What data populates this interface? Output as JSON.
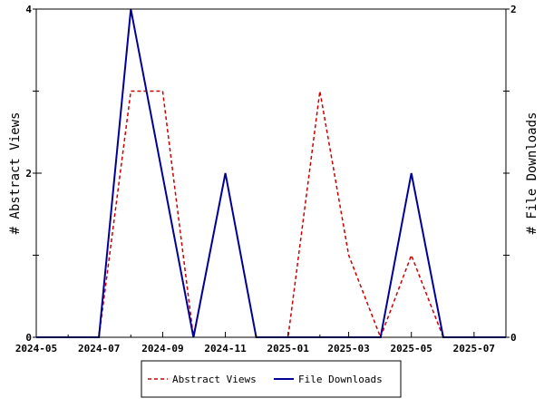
{
  "chart_data": {
    "type": "line",
    "x": [
      "2024-05",
      "2024-06",
      "2024-07",
      "2024-08",
      "2024-09",
      "2024-10",
      "2024-11",
      "2024-12",
      "2025-01",
      "2025-02",
      "2025-03",
      "2025-04",
      "2025-05",
      "2025-06",
      "2025-07",
      "2025-08"
    ],
    "x_tick_labels": [
      "2024-05",
      "2024-07",
      "2024-09",
      "2024-11",
      "2025-01",
      "2025-03",
      "2025-05",
      "2025-07"
    ],
    "series": [
      {
        "name": "Abstract Views",
        "axis": "left",
        "color": "#cc0000",
        "style": "dashed",
        "points": [
          [
            "2024-05-01",
            0
          ],
          [
            "2024-06-01",
            0
          ],
          [
            "2024-07-01",
            0
          ],
          [
            "2024-08-01",
            3
          ],
          [
            "2024-09-01",
            3
          ],
          [
            "2024-10-01",
            0
          ],
          [
            "2024-11-01",
            2
          ],
          [
            "2024-12-01",
            0
          ],
          [
            "2025-01-01",
            0
          ],
          [
            "2025-02-01",
            3
          ],
          [
            "2025-03-01",
            1
          ],
          [
            "2025-04-01",
            0
          ],
          [
            "2025-05-01",
            1
          ],
          [
            "2025-06-01",
            0
          ],
          [
            "2025-07-01",
            0
          ],
          [
            "2025-08-01",
            0
          ]
        ]
      },
      {
        "name": "File Downloads",
        "axis": "right",
        "color": "#000099",
        "style": "solid",
        "points": [
          [
            "2024-05-01",
            0
          ],
          [
            "2024-06-01",
            0
          ],
          [
            "2024-07-01",
            0
          ],
          [
            "2024-08-01",
            2
          ],
          [
            "2024-10-01",
            0
          ],
          [
            "2024-11-01",
            1
          ],
          [
            "2024-12-01",
            0
          ],
          [
            "2025-01-01",
            0
          ],
          [
            "2025-02-01",
            0
          ],
          [
            "2025-03-01",
            0
          ],
          [
            "2025-04-01",
            0
          ],
          [
            "2025-05-01",
            1
          ],
          [
            "2025-06-01",
            0
          ],
          [
            "2025-07-01",
            0
          ],
          [
            "2025-08-01",
            0
          ]
        ]
      }
    ],
    "y_left": {
      "label": "# Abstract Views",
      "ticks": [
        0,
        2,
        4
      ],
      "range": [
        0,
        4
      ]
    },
    "y_right": {
      "label": "# File Downloads",
      "ticks": [
        0,
        2
      ],
      "range": [
        0,
        2
      ]
    },
    "x_range": [
      "2024-05-01",
      "2025-08-01"
    ],
    "grid": false,
    "legend": {
      "placement": "bottom-center",
      "entries": [
        "Abstract Views",
        "File Downloads"
      ]
    }
  }
}
